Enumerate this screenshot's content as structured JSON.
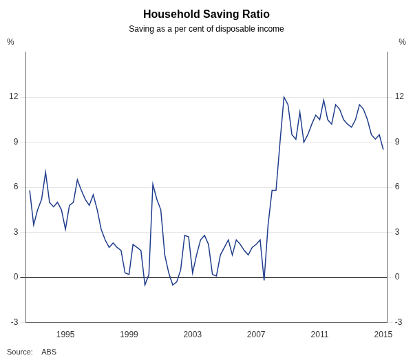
{
  "chart_data": {
    "type": "line",
    "title": "Household Saving Ratio",
    "subtitle": "Saving as a per cent of disposable income",
    "ylabel": "%",
    "y2label": "%",
    "source": "Source:    ABS",
    "color": "#1F3D8C",
    "grid": true,
    "xlim": [
      1992.5,
      2015.25
    ],
    "xticks": [
      1995,
      1999,
      2003,
      2007,
      2011,
      2015
    ],
    "ylim": [
      -3,
      15
    ],
    "yticks": [
      -3,
      0,
      3,
      6,
      9,
      12
    ],
    "y2lim": [
      -3,
      15
    ],
    "y2ticks": [
      -3,
      0,
      3,
      6,
      9,
      12
    ],
    "x": [
      1992.75,
      1993.0,
      1993.25,
      1993.5,
      1993.75,
      1994.0,
      1994.25,
      1994.5,
      1994.75,
      1995.0,
      1995.25,
      1995.5,
      1995.75,
      1996.0,
      1996.25,
      1996.5,
      1996.75,
      1997.0,
      1997.25,
      1997.5,
      1997.75,
      1998.0,
      1998.25,
      1998.5,
      1998.75,
      1999.0,
      1999.25,
      1999.5,
      1999.75,
      2000.0,
      2000.25,
      2000.5,
      2000.75,
      2001.0,
      2001.25,
      2001.5,
      2001.75,
      2002.0,
      2002.25,
      2002.5,
      2002.75,
      2003.0,
      2003.25,
      2003.5,
      2003.75,
      2004.0,
      2004.25,
      2004.5,
      2004.75,
      2005.0,
      2005.25,
      2005.5,
      2005.75,
      2006.0,
      2006.25,
      2006.5,
      2006.75,
      2007.0,
      2007.25,
      2007.5,
      2007.75,
      2008.0,
      2008.25,
      2008.5,
      2008.75,
      2009.0,
      2009.25,
      2009.5,
      2009.75,
      2010.0,
      2010.25,
      2010.5,
      2010.75,
      2011.0,
      2011.25,
      2011.5,
      2011.75,
      2012.0,
      2012.25,
      2012.5,
      2012.75,
      2013.0,
      2013.25,
      2013.5,
      2013.75,
      2014.0,
      2014.25,
      2014.5,
      2014.75,
      2015.0
    ],
    "values": [
      5.8,
      3.5,
      4.5,
      5.2,
      7.0,
      5.0,
      4.7,
      5.0,
      4.5,
      3.2,
      4.8,
      5.0,
      6.5,
      5.8,
      5.2,
      4.8,
      5.5,
      4.5,
      3.2,
      2.5,
      2.0,
      2.3,
      2.0,
      1.8,
      0.3,
      0.2,
      2.2,
      2.0,
      1.8,
      -0.5,
      0.2,
      6.2,
      5.2,
      4.5,
      1.5,
      0.3,
      -0.5,
      -0.3,
      0.5,
      2.8,
      2.7,
      0.3,
      1.5,
      2.5,
      2.8,
      2.2,
      0.2,
      0.1,
      1.5,
      2.0,
      2.5,
      1.5,
      2.5,
      2.2,
      1.8,
      1.5,
      2.0,
      2.2,
      2.5,
      -0.2,
      3.5,
      5.8,
      5.8,
      9.0,
      12.0,
      11.5,
      9.5,
      9.2,
      11.0,
      9.0,
      9.5,
      10.2,
      10.8,
      10.5,
      11.8,
      10.5,
      10.2,
      11.5,
      11.2,
      10.5,
      10.2,
      10.0,
      10.5,
      11.5,
      11.2,
      10.5,
      9.5,
      9.2,
      9.5,
      8.5
    ]
  }
}
